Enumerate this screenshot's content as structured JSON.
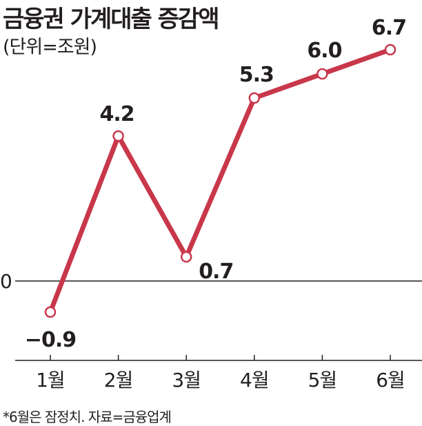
{
  "title": "금융권 가계대출 증감액",
  "unit_label": "(단위=조원)",
  "footnote": "*6월은 잠정치. 자료=금융업계",
  "colors": {
    "line": "#c8374a",
    "marker_fill": "#ffffff",
    "axis": "#231f20"
  },
  "chart_data": {
    "type": "line",
    "categories": [
      "1월",
      "2월",
      "3월",
      "4월",
      "5월",
      "6월"
    ],
    "values": [
      -0.9,
      4.2,
      0.7,
      5.3,
      6.0,
      6.7
    ],
    "data_labels": [
      "−0.9",
      "4.2",
      "0.7",
      "5.3",
      "6.0",
      "6.7"
    ],
    "zero_label": "0",
    "ylim": [
      -2.3,
      6.9
    ],
    "grid": false,
    "legend": "none"
  }
}
